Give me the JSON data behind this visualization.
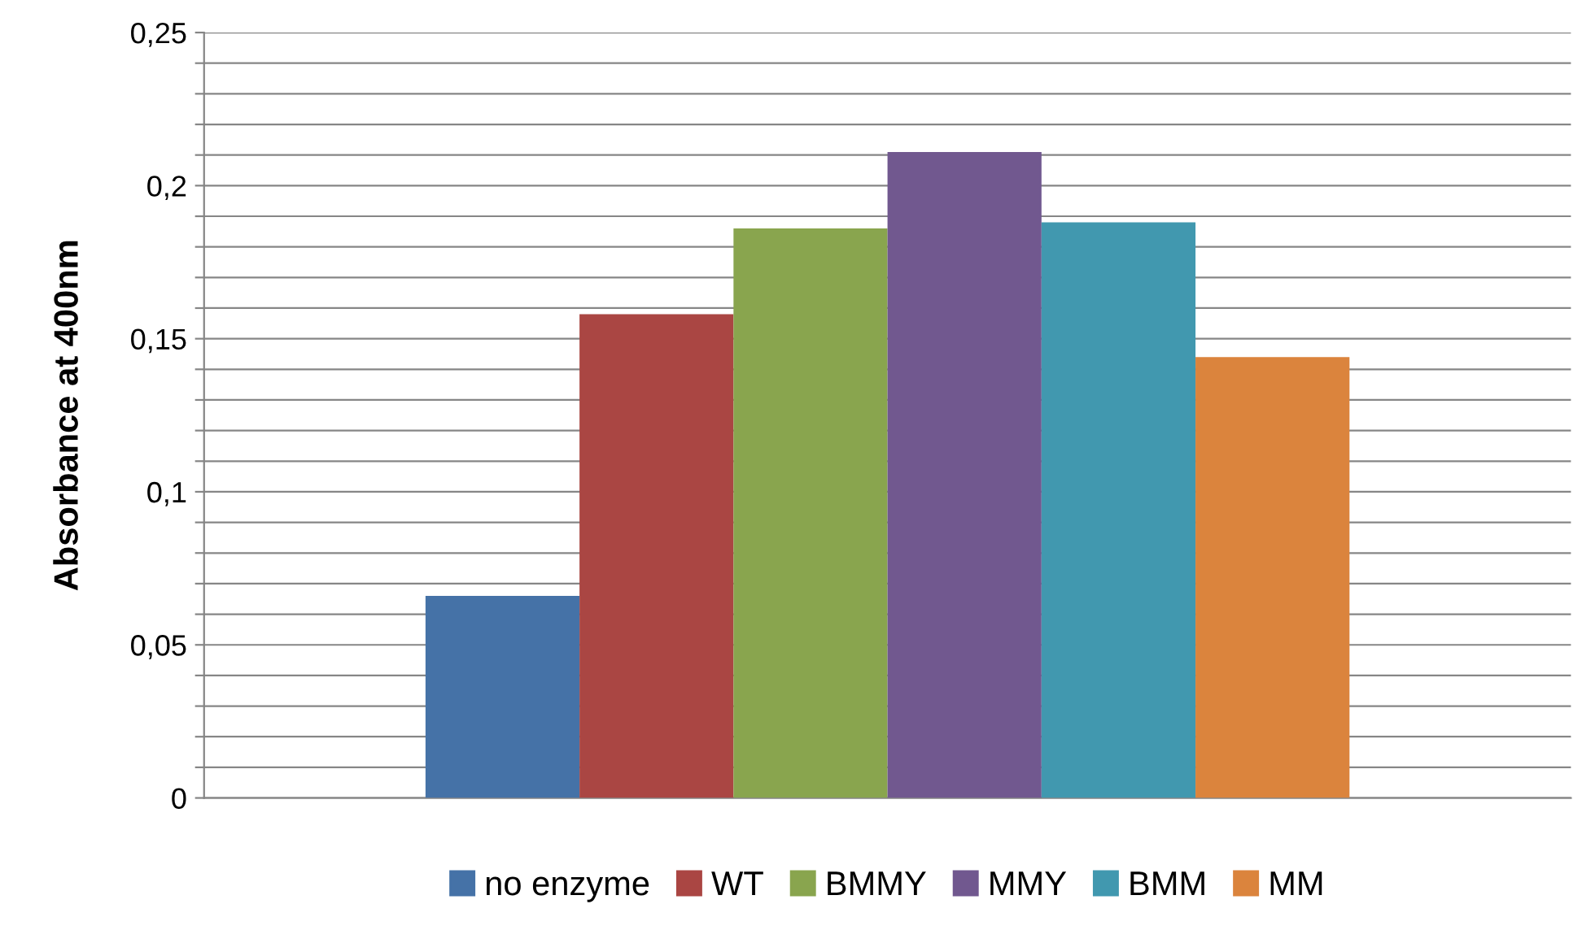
{
  "chart_data": {
    "type": "bar",
    "ylabel": "Absorbance at 400nm",
    "categories": [
      null
    ],
    "series": [
      {
        "name": "no enzyme",
        "color": "#4572a7",
        "values": [
          0.066
        ]
      },
      {
        "name": "WT",
        "color": "#aa4643",
        "values": [
          0.158
        ]
      },
      {
        "name": "BMMY",
        "color": "#89a54e",
        "values": [
          0.186
        ]
      },
      {
        "name": "MMY",
        "color": "#71588f",
        "values": [
          0.211
        ]
      },
      {
        "name": "BMM",
        "color": "#4198af",
        "values": [
          0.188
        ]
      },
      {
        "name": "MM",
        "color": "#db843d",
        "values": [
          0.144
        ]
      }
    ],
    "ylim": [
      0,
      0.25
    ],
    "yticks": [
      0,
      {
        "value": 0.01,
        "label": null
      },
      {
        "value": 0.02,
        "label": null
      },
      {
        "value": 0.03,
        "label": null
      },
      {
        "value": 0.04,
        "label": null
      },
      {
        "value": 0.05,
        "label": "0,05"
      },
      {
        "value": 0.06,
        "label": null
      },
      {
        "value": 0.07,
        "label": null
      },
      {
        "value": 0.08,
        "label": null
      },
      {
        "value": 0.09,
        "label": null
      },
      {
        "value": 0.1,
        "label": "0,1"
      },
      {
        "value": 0.11,
        "label": null
      },
      {
        "value": 0.12,
        "label": null
      },
      {
        "value": 0.13,
        "label": null
      },
      {
        "value": 0.14,
        "label": null
      },
      {
        "value": 0.15,
        "label": "0,15"
      },
      {
        "value": 0.16,
        "label": null
      },
      {
        "value": 0.17,
        "label": null
      },
      {
        "value": 0.18,
        "label": null
      },
      {
        "value": 0.19,
        "label": null
      },
      {
        "value": 0.2,
        "label": "0,2"
      },
      {
        "value": 0.21,
        "label": null
      },
      {
        "value": 0.22,
        "label": null
      },
      {
        "value": 0.23,
        "label": null
      },
      {
        "value": 0.24,
        "label": null
      },
      {
        "value": 0.25,
        "label": "0,25"
      }
    ],
    "grid": "y",
    "legend": "bottom"
  }
}
